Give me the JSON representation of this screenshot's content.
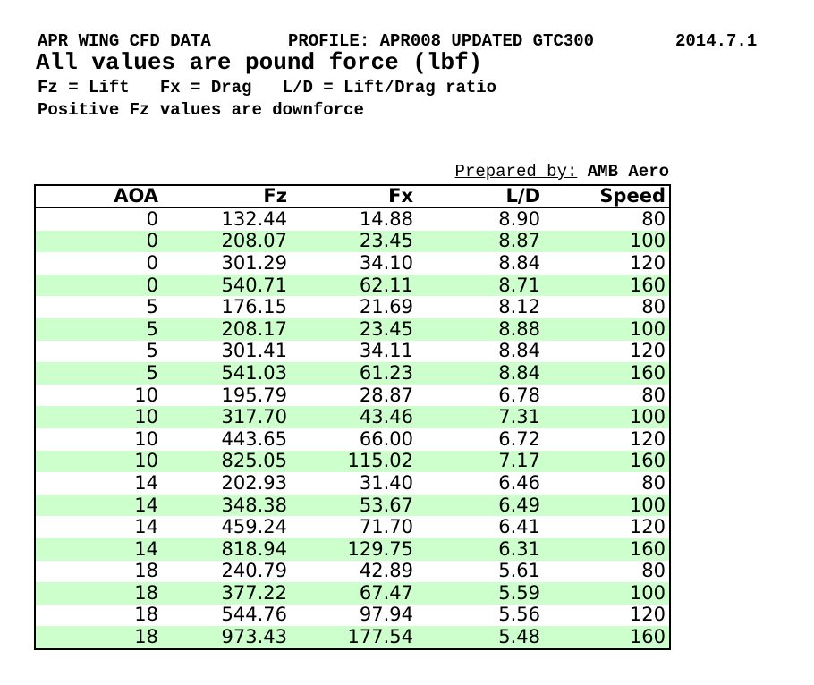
{
  "header": {
    "title": "APR WING CFD DATA",
    "profile": "PROFILE: APR008 UPDATED GTC300",
    "date": "2014.7.1",
    "subtitle": "All values are pound force (lbf)",
    "legend": "Fz = Lift   Fx = Drag   L/D = Lift/Drag ratio",
    "note": "Positive Fz values are downforce",
    "prepared_by_label": "Prepared by:",
    "prepared_by_value": "AMB Aero"
  },
  "table": {
    "columns": [
      "AOA",
      "Fz",
      "Fx",
      "L/D",
      "Speed"
    ],
    "rows": [
      [
        "0",
        "132.44",
        "14.88",
        "8.90",
        "80"
      ],
      [
        "0",
        "208.07",
        "23.45",
        "8.87",
        "100"
      ],
      [
        "0",
        "301.29",
        "34.10",
        "8.84",
        "120"
      ],
      [
        "0",
        "540.71",
        "62.11",
        "8.71",
        "160"
      ],
      [
        "5",
        "176.15",
        "21.69",
        "8.12",
        "80"
      ],
      [
        "5",
        "208.17",
        "23.45",
        "8.88",
        "100"
      ],
      [
        "5",
        "301.41",
        "34.11",
        "8.84",
        "120"
      ],
      [
        "5",
        "541.03",
        "61.23",
        "8.84",
        "160"
      ],
      [
        "10",
        "195.79",
        "28.87",
        "6.78",
        "80"
      ],
      [
        "10",
        "317.70",
        "43.46",
        "7.31",
        "100"
      ],
      [
        "10",
        "443.65",
        "66.00",
        "6.72",
        "120"
      ],
      [
        "10",
        "825.05",
        "115.02",
        "7.17",
        "160"
      ],
      [
        "14",
        "202.93",
        "31.40",
        "6.46",
        "80"
      ],
      [
        "14",
        "348.38",
        "53.67",
        "6.49",
        "100"
      ],
      [
        "14",
        "459.24",
        "71.70",
        "6.41",
        "120"
      ],
      [
        "14",
        "818.94",
        "129.75",
        "6.31",
        "160"
      ],
      [
        "18",
        "240.79",
        "42.89",
        "5.61",
        "80"
      ],
      [
        "18",
        "377.22",
        "67.47",
        "5.59",
        "100"
      ],
      [
        "18",
        "544.76",
        "97.94",
        "5.56",
        "120"
      ],
      [
        "18",
        "973.43",
        "177.54",
        "5.48",
        "160"
      ]
    ]
  },
  "colors": {
    "stripe_green": "#ccffcc",
    "text": "#000000",
    "border": "#000000",
    "background": "#ffffff"
  }
}
